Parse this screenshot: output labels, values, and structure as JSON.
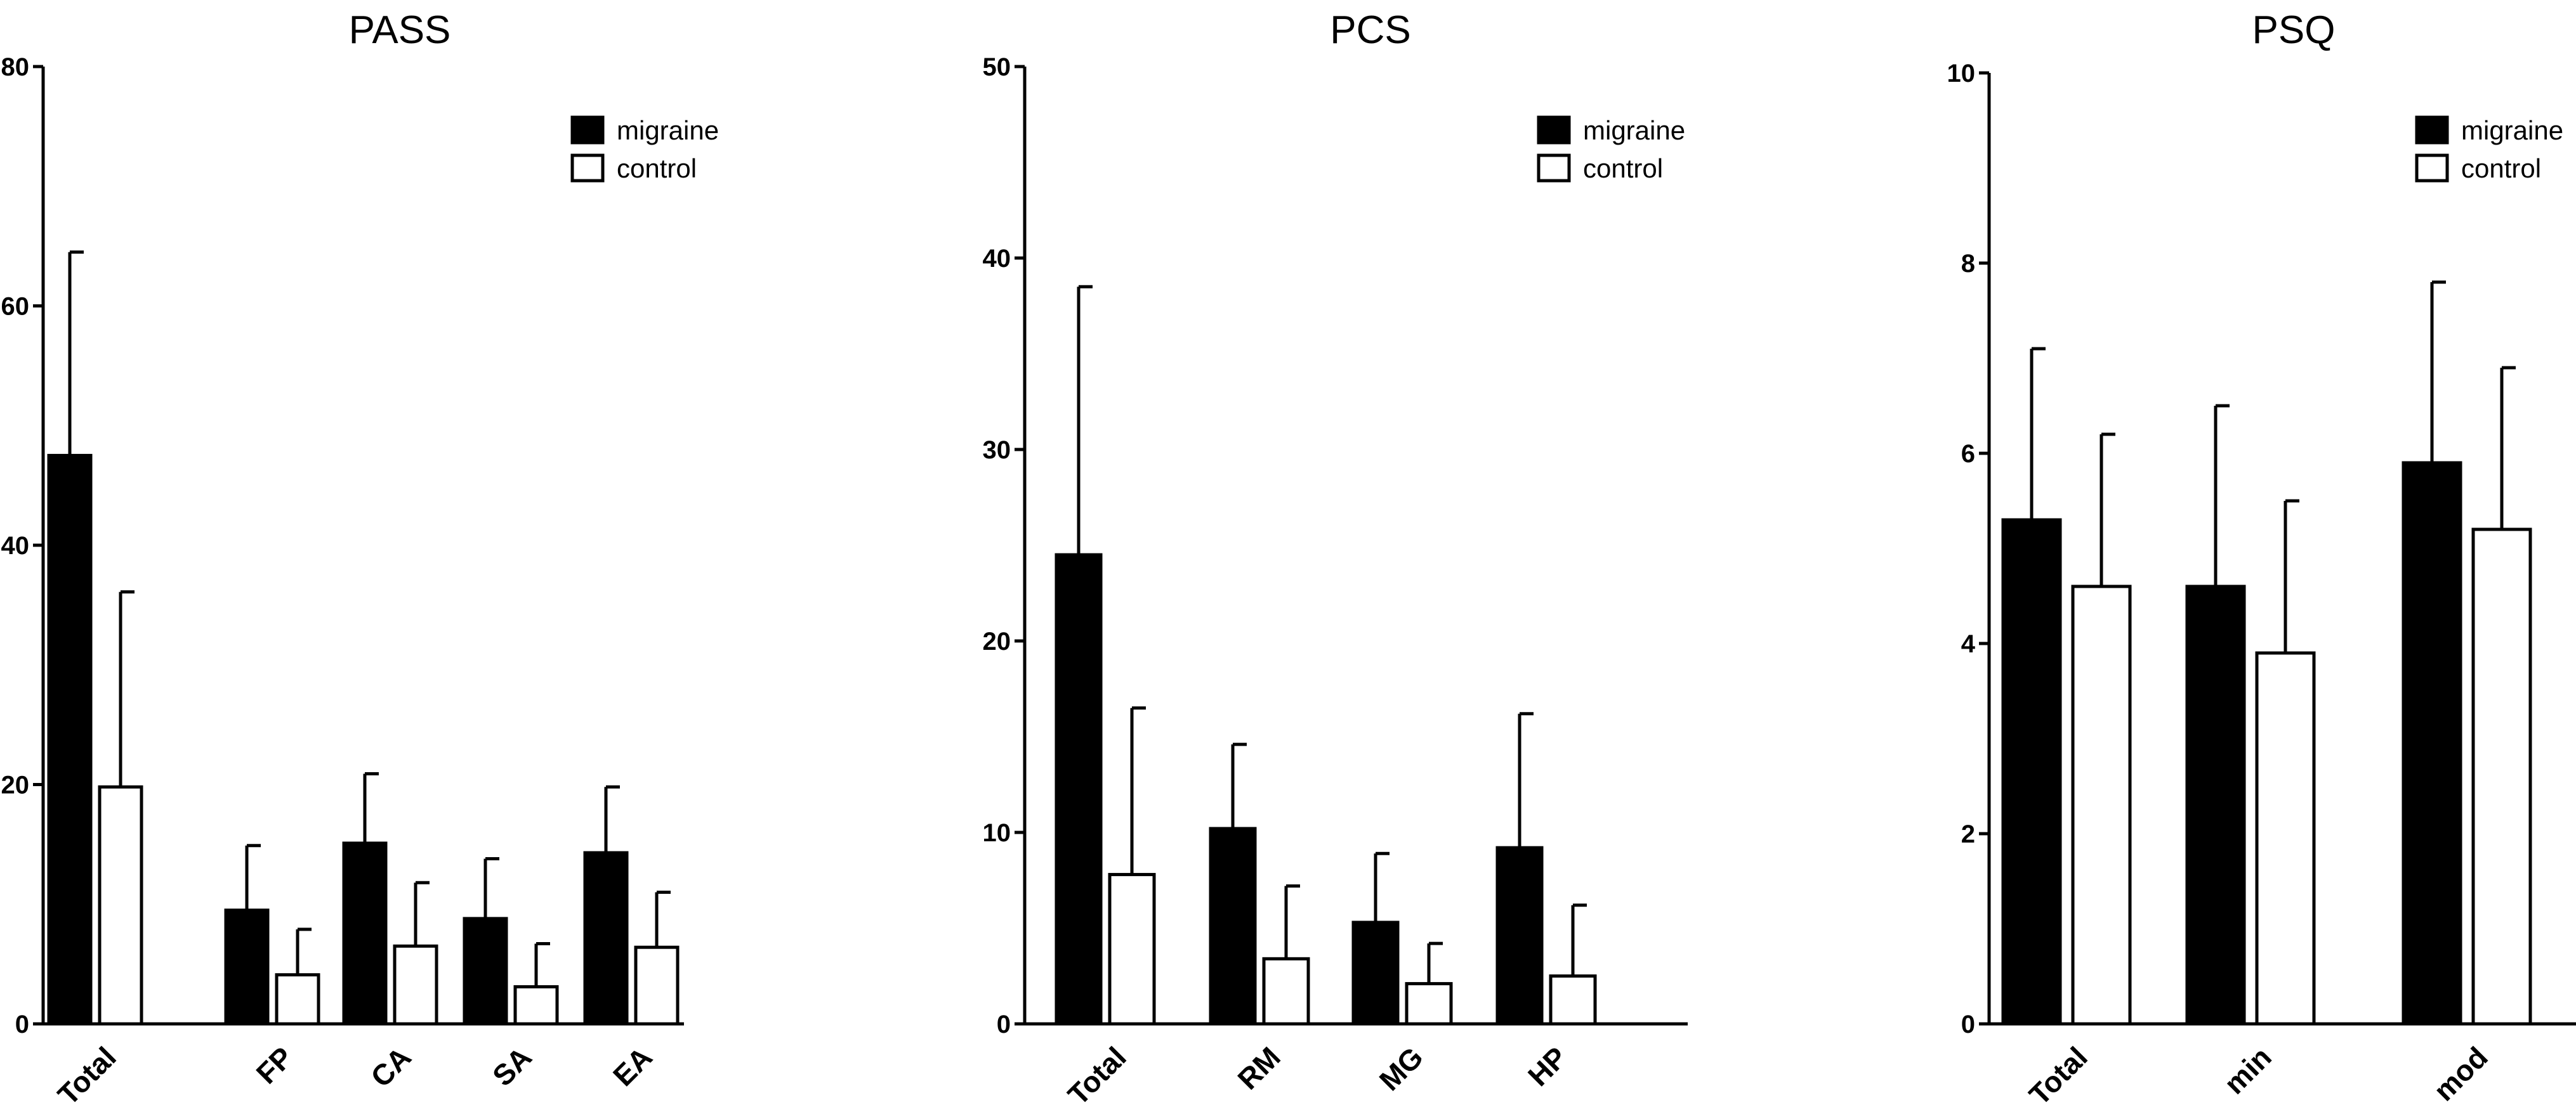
{
  "chart_data": [
    {
      "type": "bar",
      "title": "PASS",
      "xlabel": "",
      "ylabel": "",
      "ylim": [
        0,
        80
      ],
      "yticks": [
        "0",
        "20",
        "40",
        "60",
        "80"
      ],
      "categories": [
        "Total",
        "FP",
        "CA",
        "SA",
        "EA"
      ],
      "series": [
        {
          "name": "migraine",
          "values": [
            47.5,
            9.5,
            15.1,
            8.8,
            14.3
          ],
          "errors": [
            17.0,
            5.4,
            5.8,
            5.0,
            5.5
          ],
          "color": "#000000"
        },
        {
          "name": "control",
          "values": [
            19.8,
            4.1,
            6.5,
            3.1,
            6.4
          ],
          "errors": [
            16.3,
            3.8,
            5.3,
            3.6,
            4.6
          ],
          "color": "#ffffff"
        }
      ],
      "legend": "top-right",
      "grid": false
    },
    {
      "type": "bar",
      "title": "PCS",
      "xlabel": "",
      "ylabel": "",
      "ylim": [
        0,
        50
      ],
      "yticks": [
        "0",
        "10",
        "20",
        "30",
        "40",
        "50"
      ],
      "categories": [
        "Total",
        "RM",
        "MG",
        "HP"
      ],
      "series": [
        {
          "name": "migraine",
          "values": [
            24.5,
            10.2,
            5.3,
            9.2
          ],
          "errors": [
            14.0,
            4.4,
            3.6,
            7.0
          ],
          "color": "#000000"
        },
        {
          "name": "control",
          "values": [
            7.8,
            3.4,
            2.1,
            2.5
          ],
          "errors": [
            8.7,
            3.8,
            2.1,
            3.7
          ],
          "color": "#ffffff"
        }
      ],
      "legend": "top-right",
      "grid": false
    },
    {
      "type": "bar",
      "title": "PSQ",
      "xlabel": "",
      "ylabel": "",
      "ylim": [
        0,
        10
      ],
      "yticks": [
        "0",
        "2",
        "4",
        "6",
        "8",
        "10"
      ],
      "categories": [
        "Total",
        "min",
        "mod"
      ],
      "series": [
        {
          "name": "migraine",
          "values": [
            5.3,
            4.6,
            5.9
          ],
          "errors": [
            1.8,
            1.9,
            1.9
          ],
          "color": "#000000"
        },
        {
          "name": "control",
          "values": [
            4.6,
            3.9,
            5.2
          ],
          "errors": [
            1.6,
            1.6,
            1.7
          ],
          "color": "#ffffff"
        }
      ],
      "legend": "top-right",
      "grid": false
    }
  ]
}
